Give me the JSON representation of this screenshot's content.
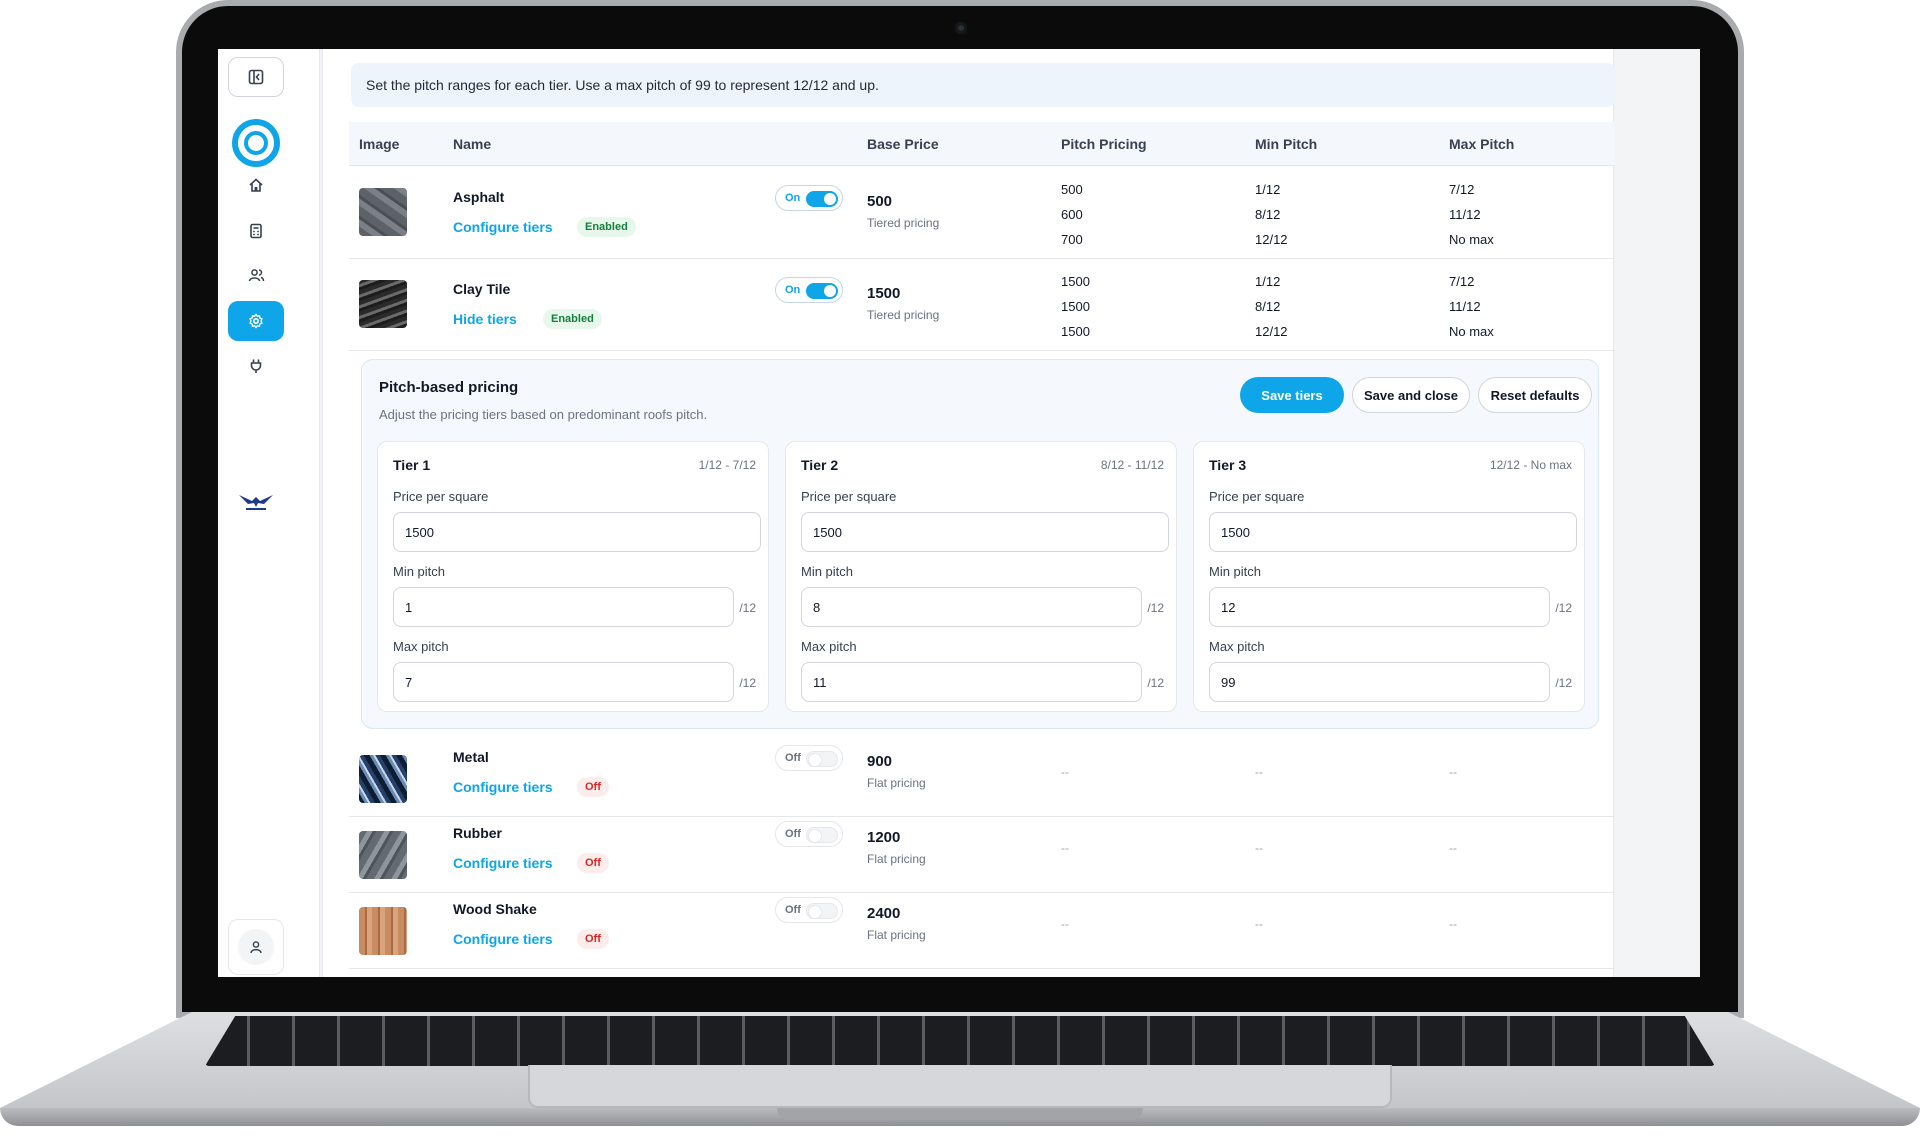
{
  "info_text": "Set the pitch ranges for each tier. Use a max pitch of 99 to represent 12/12 and up.",
  "columns": {
    "image": "Image",
    "name": "Name",
    "base_price": "Base Price",
    "pitch_pricing": "Pitch Pricing",
    "min_pitch": "Min Pitch",
    "max_pitch": "Max Pitch"
  },
  "materials": [
    {
      "name": "Asphalt",
      "link": "Configure tiers",
      "badge": "Enabled",
      "toggle": "On",
      "price": "500",
      "price_type": "Tiered pricing",
      "pitch_pricing": [
        "500",
        "600",
        "700"
      ],
      "min_pitch": [
        "1/12",
        "8/12",
        "12/12"
      ],
      "max_pitch": [
        "7/12",
        "11/12",
        "No max"
      ]
    },
    {
      "name": "Clay Tile",
      "link": "Hide tiers",
      "badge": "Enabled",
      "toggle": "On",
      "price": "1500",
      "price_type": "Tiered pricing",
      "pitch_pricing": [
        "1500",
        "1500",
        "1500"
      ],
      "min_pitch": [
        "1/12",
        "8/12",
        "12/12"
      ],
      "max_pitch": [
        "7/12",
        "11/12",
        "No max"
      ]
    },
    {
      "name": "Metal",
      "link": "Configure tiers",
      "badge": "Off",
      "toggle": "Off",
      "price": "900",
      "price_type": "Flat pricing",
      "empty": "--"
    },
    {
      "name": "Rubber",
      "link": "Configure tiers",
      "badge": "Off",
      "toggle": "Off",
      "price": "1200",
      "price_type": "Flat pricing",
      "empty": "--"
    },
    {
      "name": "Wood Shake",
      "link": "Configure tiers",
      "badge": "Off",
      "toggle": "Off",
      "price": "2400",
      "price_type": "Flat pricing",
      "empty": "--"
    }
  ],
  "pitch_panel": {
    "title": "Pitch-based pricing",
    "subtitle": "Adjust the pricing tiers based on predominant roofs pitch.",
    "save_tiers": "Save tiers",
    "save_close": "Save and close",
    "reset_defaults": "Reset defaults",
    "price_label": "Price per square",
    "min_label": "Min pitch",
    "max_label": "Max pitch",
    "unit": "/12",
    "tiers": [
      {
        "title": "Tier 1",
        "range": "1/12 - 7/12",
        "price": "1500",
        "min": "1",
        "max": "7"
      },
      {
        "title": "Tier 2",
        "range": "8/12 - 11/12",
        "price": "1500",
        "min": "8",
        "max": "11"
      },
      {
        "title": "Tier 3",
        "range": "12/12 - No max",
        "price": "1500",
        "min": "12",
        "max": "99"
      }
    ]
  },
  "colors": {
    "accent": "#0ea5e9",
    "enabled_badge": "#15803d",
    "off_badge": "#dc2626"
  },
  "sidebar_icons": [
    "sidebar-toggle-icon",
    "home-icon",
    "calculator-icon",
    "users-icon",
    "settings-icon",
    "plug-icon",
    "eagleview-logo",
    "user-icon"
  ]
}
